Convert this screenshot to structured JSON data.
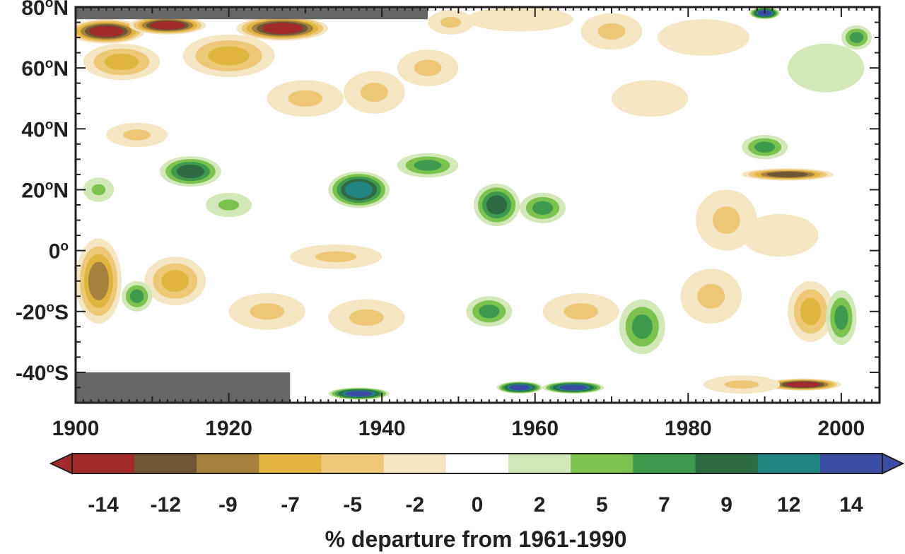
{
  "chart_data": {
    "type": "heatmap",
    "title": "",
    "xlabel": "",
    "ylabel": "",
    "xlim": [
      1900,
      2005
    ],
    "ylim": [
      -50,
      80
    ],
    "x_ticks": [
      1900,
      1920,
      1940,
      1960,
      1980,
      2000
    ],
    "x_tick_labels": [
      "1900",
      "1920",
      "1940",
      "1960",
      "1980",
      "2000"
    ],
    "y_ticks": [
      80,
      60,
      40,
      20,
      0,
      -20,
      -40
    ],
    "y_tick_labels": [
      {
        "value": 80,
        "main": "80",
        "sup": "o",
        "suffix": "N"
      },
      {
        "value": 60,
        "main": "60",
        "sup": "o",
        "suffix": "N"
      },
      {
        "value": 40,
        "main": "40",
        "sup": "o",
        "suffix": "N"
      },
      {
        "value": 20,
        "main": "20",
        "sup": "o",
        "suffix": "N"
      },
      {
        "value": 0,
        "main": "0",
        "sup": "o",
        "suffix": ""
      },
      {
        "value": -20,
        "main": "-20",
        "sup": "o",
        "suffix": "S"
      },
      {
        "value": -40,
        "main": "-40",
        "sup": "o",
        "suffix": "S"
      }
    ],
    "colorbar": {
      "title": "% departure from 1961-1990",
      "labels": [
        "-14",
        "-12",
        "-9",
        "-7",
        "-5",
        "-2",
        "0",
        "2",
        "5",
        "7",
        "9",
        "12",
        "14"
      ],
      "colors": [
        "#a12a2c",
        "#6e5733",
        "#a5813e",
        "#e0b53f",
        "#ecc877",
        "#f4e5c3",
        "#ffffff",
        "#d3e8b8",
        "#7cc24e",
        "#3e9a4d",
        "#2d6b43",
        "#218480",
        "#3b4ca5"
      ],
      "end_colors": [
        "#a12a2c",
        "#3b4ca5"
      ]
    },
    "missing_color": "#666666",
    "missing_regions": [
      {
        "x_from": 1900,
        "x_to": 1946,
        "lat_from": 76,
        "lat_to": 80
      },
      {
        "x_from": 1900,
        "x_to": 1928,
        "lat_from": -50,
        "lat_to": -40
      }
    ],
    "features": [
      {
        "year": 1904,
        "lat": 72,
        "value": -14,
        "rx": 5,
        "ry": 4
      },
      {
        "year": 1912,
        "lat": 74,
        "value": -14,
        "rx": 5,
        "ry": 3
      },
      {
        "year": 1927,
        "lat": 73,
        "value": -14,
        "rx": 6,
        "ry": 4
      },
      {
        "year": 1906,
        "lat": 62,
        "value": -7,
        "rx": 5,
        "ry": 6
      },
      {
        "year": 1920,
        "lat": 64,
        "value": -7,
        "rx": 6,
        "ry": 7
      },
      {
        "year": 1930,
        "lat": 50,
        "value": -5,
        "rx": 5,
        "ry": 6
      },
      {
        "year": 1939,
        "lat": 52,
        "value": -5,
        "rx": 4,
        "ry": 7
      },
      {
        "year": 1908,
        "lat": 38,
        "value": -5,
        "rx": 4,
        "ry": 4
      },
      {
        "year": 1946,
        "lat": 60,
        "value": -5,
        "rx": 4,
        "ry": 6
      },
      {
        "year": 1949,
        "lat": 75,
        "value": -5,
        "rx": 3,
        "ry": 4
      },
      {
        "year": 1958,
        "lat": 76,
        "value": -2,
        "rx": 7,
        "ry": 4
      },
      {
        "year": 1970,
        "lat": 72,
        "value": -5,
        "rx": 4,
        "ry": 6
      },
      {
        "year": 1982,
        "lat": 70,
        "value": -2,
        "rx": 6,
        "ry": 6
      },
      {
        "year": 1990,
        "lat": 78,
        "value": 14,
        "rx": 2,
        "ry": 2
      },
      {
        "year": 2002,
        "lat": 70,
        "value": 7,
        "rx": 2,
        "ry": 4
      },
      {
        "year": 1998,
        "lat": 60,
        "value": 2,
        "rx": 5,
        "ry": 8
      },
      {
        "year": 1975,
        "lat": 50,
        "value": -2,
        "rx": 5,
        "ry": 6
      },
      {
        "year": 1946,
        "lat": 28,
        "value": 7,
        "rx": 4,
        "ry": 4
      },
      {
        "year": 1915,
        "lat": 26,
        "value": 9,
        "rx": 4,
        "ry": 5
      },
      {
        "year": 1937,
        "lat": 20,
        "value": 12,
        "rx": 4,
        "ry": 6
      },
      {
        "year": 1955,
        "lat": 15,
        "value": 9,
        "rx": 3,
        "ry": 7
      },
      {
        "year": 1961,
        "lat": 14,
        "value": 7,
        "rx": 3,
        "ry": 5
      },
      {
        "year": 1920,
        "lat": 15,
        "value": 5,
        "rx": 3,
        "ry": 4
      },
      {
        "year": 1903,
        "lat": 20,
        "value": 5,
        "rx": 2,
        "ry": 4
      },
      {
        "year": 1990,
        "lat": 34,
        "value": 7,
        "rx": 3,
        "ry": 4
      },
      {
        "year": 1993,
        "lat": 25,
        "value": -12,
        "rx": 6,
        "ry": 2
      },
      {
        "year": 1985,
        "lat": 10,
        "value": -5,
        "rx": 4,
        "ry": 10
      },
      {
        "year": 1992,
        "lat": 5,
        "value": -2,
        "rx": 5,
        "ry": 7
      },
      {
        "year": 1903,
        "lat": -10,
        "value": -9,
        "rx": 3,
        "ry": 14
      },
      {
        "year": 1913,
        "lat": -10,
        "value": -7,
        "rx": 4,
        "ry": 8
      },
      {
        "year": 1908,
        "lat": -15,
        "value": 7,
        "rx": 2,
        "ry": 5
      },
      {
        "year": 1925,
        "lat": -20,
        "value": -5,
        "rx": 5,
        "ry": 6
      },
      {
        "year": 1938,
        "lat": -22,
        "value": -5,
        "rx": 5,
        "ry": 6
      },
      {
        "year": 1934,
        "lat": -2,
        "value": -5,
        "rx": 6,
        "ry": 4
      },
      {
        "year": 1954,
        "lat": -20,
        "value": 7,
        "rx": 3,
        "ry": 5
      },
      {
        "year": 1966,
        "lat": -20,
        "value": -5,
        "rx": 5,
        "ry": 6
      },
      {
        "year": 1974,
        "lat": -25,
        "value": 7,
        "rx": 3,
        "ry": 9
      },
      {
        "year": 1983,
        "lat": -15,
        "value": -5,
        "rx": 4,
        "ry": 9
      },
      {
        "year": 1996,
        "lat": -20,
        "value": -7,
        "rx": 3,
        "ry": 10
      },
      {
        "year": 2000,
        "lat": -22,
        "value": 7,
        "rx": 2,
        "ry": 9
      },
      {
        "year": 1958,
        "lat": -45,
        "value": 14,
        "rx": 3,
        "ry": 2
      },
      {
        "year": 1965,
        "lat": -45,
        "value": 14,
        "rx": 4,
        "ry": 2
      },
      {
        "year": 1937,
        "lat": -47,
        "value": 14,
        "rx": 4,
        "ry": 2
      },
      {
        "year": 1995,
        "lat": -44,
        "value": -14,
        "rx": 5,
        "ry": 2
      },
      {
        "year": 1987,
        "lat": -44,
        "value": -5,
        "rx": 5,
        "ry": 3
      }
    ]
  }
}
